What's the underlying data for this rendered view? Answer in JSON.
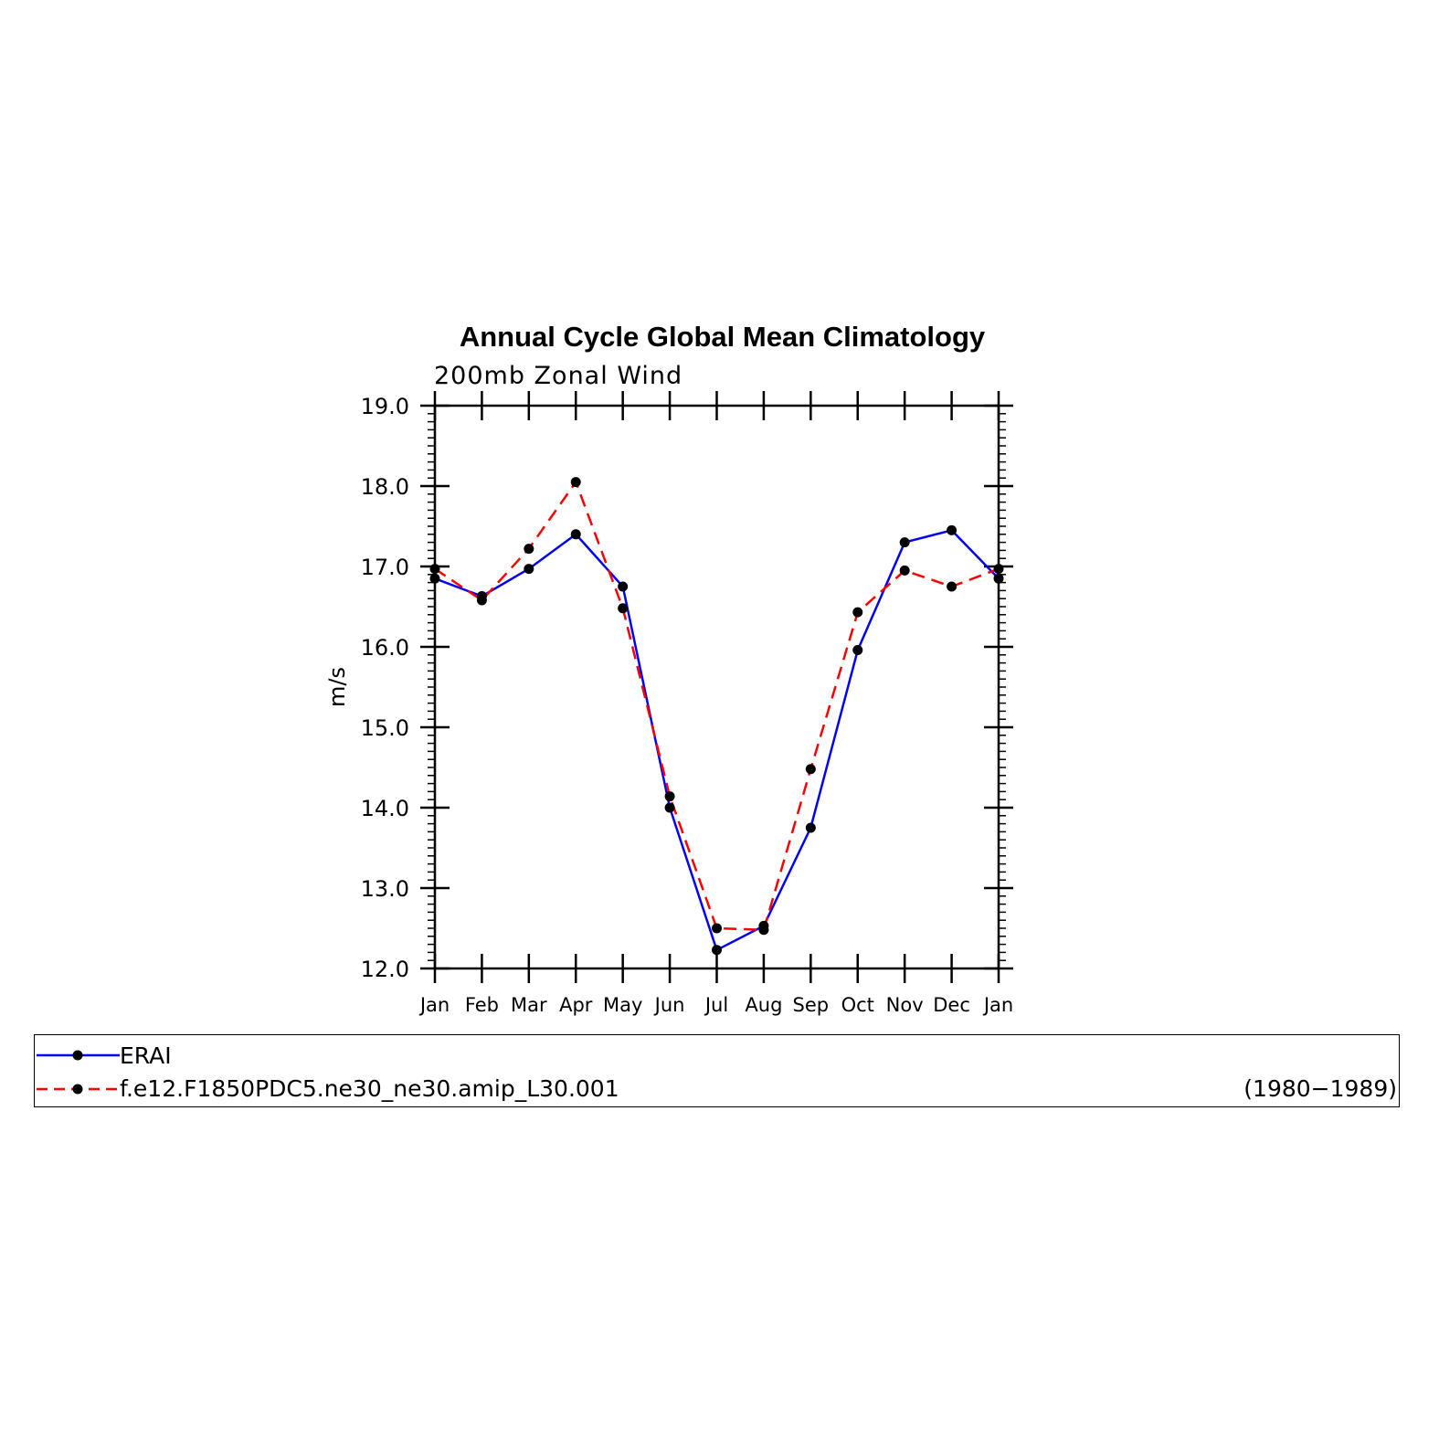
{
  "title": "Annual Cycle Global Mean Climatology",
  "subtitle": "200mb  Zonal  Wind",
  "chart_data": {
    "type": "line",
    "title": "Annual Cycle Global Mean Climatology",
    "subtitle": "200mb Zonal Wind",
    "xlabel": "",
    "ylabel": "m/s",
    "ylim": [
      12.0,
      19.0
    ],
    "yticks": [
      "12.0",
      "13.0",
      "14.0",
      "15.0",
      "16.0",
      "17.0",
      "18.0",
      "19.0"
    ],
    "categories": [
      "Jan",
      "Feb",
      "Mar",
      "Apr",
      "May",
      "Jun",
      "Jul",
      "Aug",
      "Sep",
      "Oct",
      "Nov",
      "Dec",
      "Jan"
    ],
    "series": [
      {
        "name": "ERAI",
        "color": "#0000ff",
        "style": "solid",
        "markers": true,
        "values": [
          16.85,
          16.63,
          16.97,
          17.4,
          16.75,
          14.0,
          12.23,
          12.53,
          13.75,
          15.96,
          17.3,
          17.45,
          16.85
        ]
      },
      {
        "name": "f.e12.F1850PDC5.ne30_ne30.amip_L30.001",
        "color": "#ff0000",
        "style": "dashed",
        "markers": true,
        "values": [
          16.97,
          16.58,
          17.22,
          18.05,
          16.48,
          14.14,
          12.5,
          12.48,
          14.48,
          16.43,
          16.95,
          16.75,
          16.97
        ]
      }
    ],
    "legend_position": "bottom"
  },
  "legend": {
    "items": [
      {
        "label": "ERAI",
        "color": "#0000ff"
      },
      {
        "label": "f.e12.F1850PDC5.ne30_ne30.amip_L30.001",
        "color": "#ff0000"
      }
    ],
    "period": "(1980−1989)"
  }
}
